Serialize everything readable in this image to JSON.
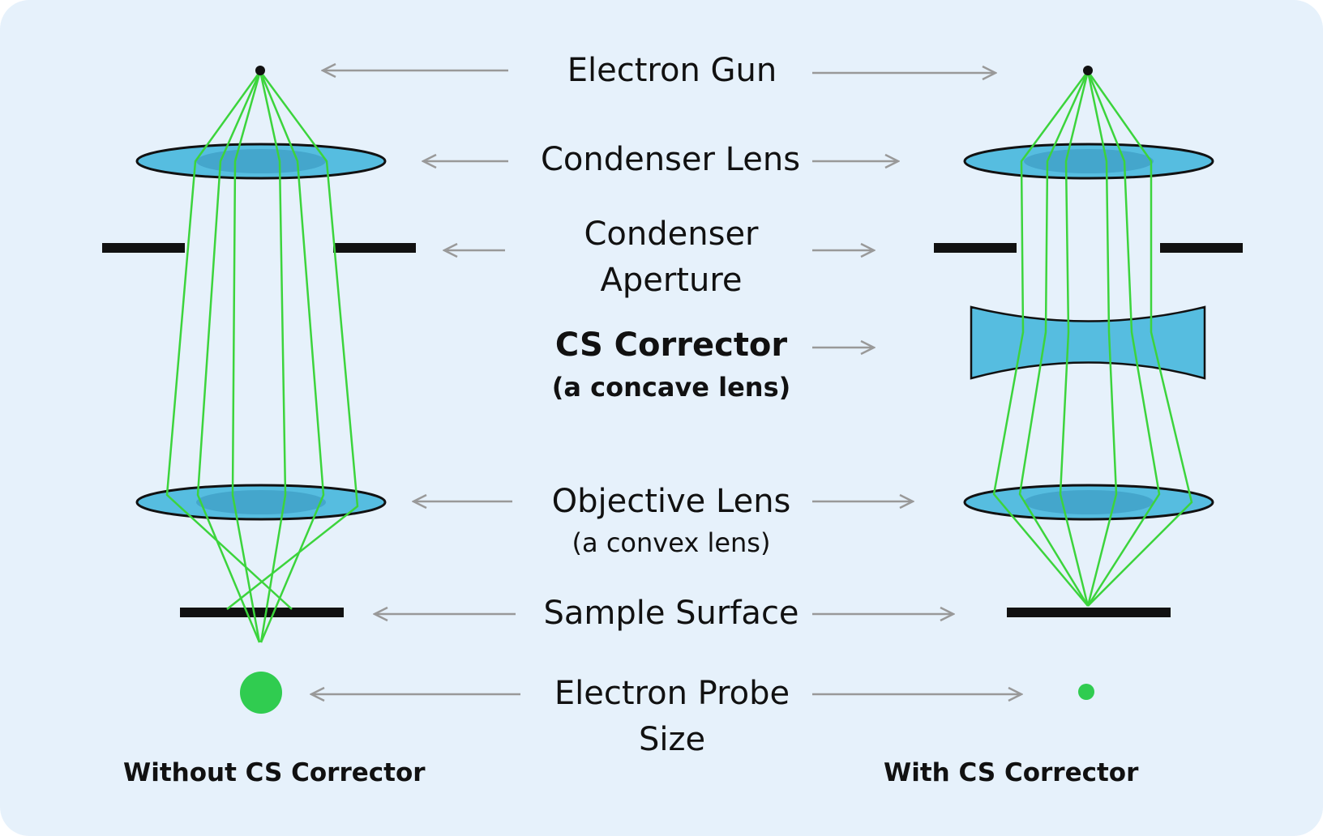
{
  "labels": {
    "electron_gun": "Electron Gun",
    "condenser_lens": "Condenser Lens",
    "condenser_aperture_1": "Condenser",
    "condenser_aperture_2": "Aperture",
    "cs_corrector": "CS Corrector",
    "cs_corrector_sub": "(a concave lens)",
    "objective_lens": "Objective Lens",
    "objective_lens_sub": "(a convex lens)",
    "sample_surface": "Sample Surface",
    "probe_size_1": "Electron Probe",
    "probe_size_2": "Size"
  },
  "captions": {
    "without": "Without CS Corrector",
    "with": "With CS Corrector"
  },
  "colors": {
    "background": "#E6F1FB",
    "beam": "#3CD43C",
    "lens_fill": "#56BDE0",
    "lens_inner": "#44A6CC",
    "arrow": "#999999",
    "probe_dot": "#30CC50"
  }
}
